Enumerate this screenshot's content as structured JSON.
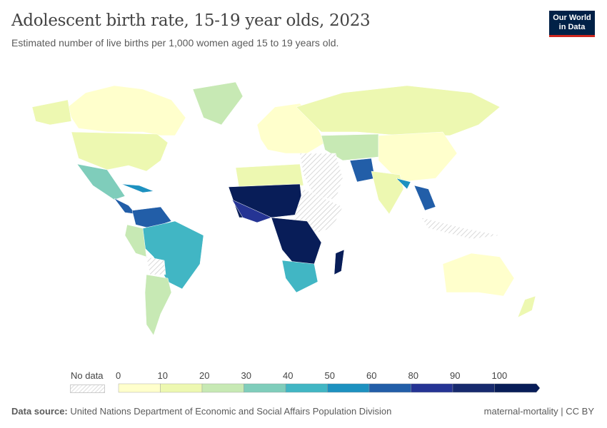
{
  "title": "Adolescent birth rate, 15-19 year olds, 2023",
  "subtitle": "Estimated number of live births per 1,000 women aged 15 to 19 years old.",
  "logo": {
    "line1": "Our World",
    "line2": "in Data"
  },
  "legend": {
    "no_data_label": "No data",
    "ticks": [
      "0",
      "10",
      "20",
      "30",
      "40",
      "50",
      "60",
      "80",
      "90",
      "100"
    ],
    "bins": [
      {
        "from": 0,
        "to": 10,
        "color": "#ffffcc"
      },
      {
        "from": 10,
        "to": 20,
        "color": "#edf8b1"
      },
      {
        "from": 20,
        "to": 30,
        "color": "#c7e9b4"
      },
      {
        "from": 30,
        "to": 40,
        "color": "#7fcdbb"
      },
      {
        "from": 40,
        "to": 50,
        "color": "#41b6c4"
      },
      {
        "from": 50,
        "to": 60,
        "color": "#1d91c0"
      },
      {
        "from": 60,
        "to": 80,
        "color": "#225ea8"
      },
      {
        "from": 80,
        "to": 90,
        "color": "#253494"
      },
      {
        "from": 90,
        "to": 100,
        "color": "#172a6e"
      },
      {
        "from": 100,
        "to": null,
        "color": "#081d58"
      }
    ]
  },
  "footer": {
    "source_label": "Data source:",
    "source": "United Nations Department of Economic and Social Affairs Population Division",
    "right": "maternal-mortality | CC BY"
  }
}
